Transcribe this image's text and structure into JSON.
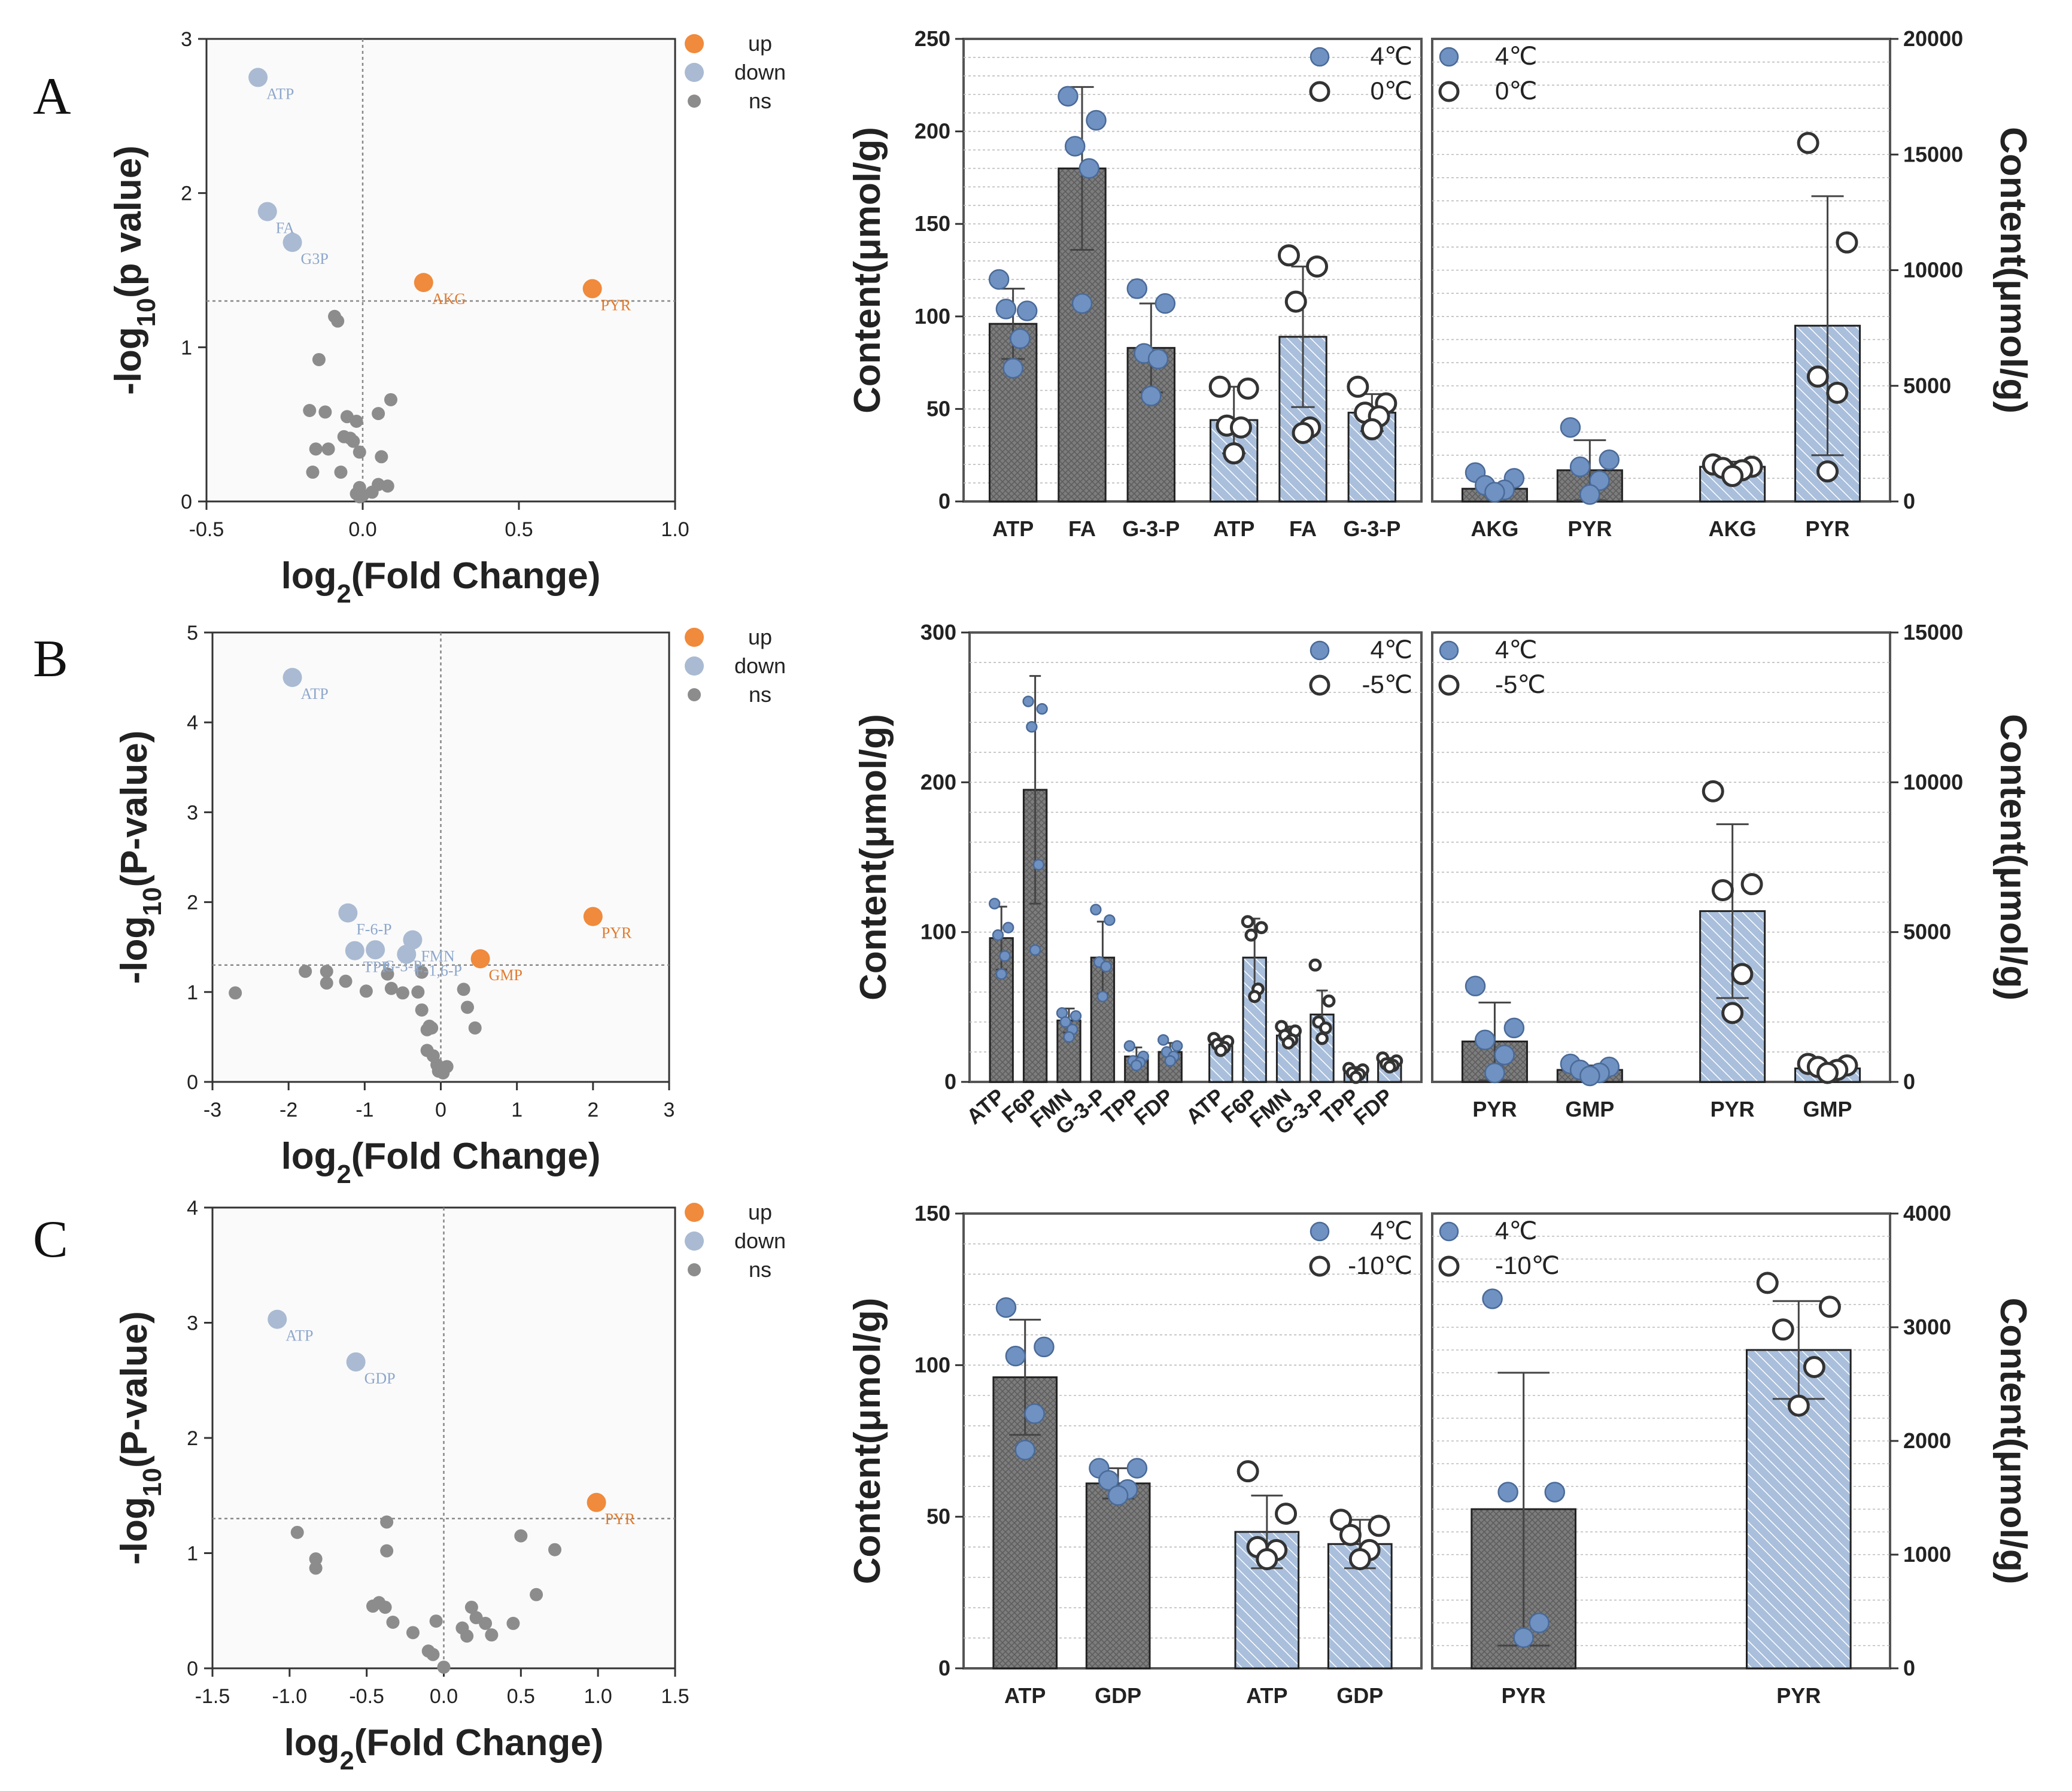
{
  "colors": {
    "up": "#f08a3c",
    "down": "#a9bad2",
    "ns": "#8c8c8c",
    "dark_bar": "#7d7d7d",
    "light_bar": "#a9bfdc",
    "dot_fill": "#6f92c2",
    "label_up": "#e07b2e",
    "label_down": "#8da7cc",
    "gmp_label": "#e07b2e"
  },
  "panel_letters": [
    "A",
    "B",
    "C"
  ],
  "volcano_legend": [
    "up",
    "down",
    "ns"
  ],
  "chart_data": [
    {
      "type": "scatter",
      "panel": "A",
      "xlabel": "log2(Fold Change)",
      "ylabel": "-log10(p value)",
      "xticks": [
        "-0.5",
        "0.0",
        "0.5",
        "1.0"
      ],
      "yticks": [
        "0",
        "1",
        "2",
        "3"
      ],
      "xlim": [
        -0.5,
        1.0
      ],
      "ylim": [
        0,
        3
      ],
      "threshold_y": 1.3,
      "labeled": [
        {
          "label": "ATP",
          "x": -0.335,
          "y": 2.75,
          "class": "down"
        },
        {
          "label": "FA",
          "x": -0.305,
          "y": 1.88,
          "class": "down"
        },
        {
          "label": "G3P",
          "x": -0.225,
          "y": 1.68,
          "class": "down"
        },
        {
          "label": "AKG",
          "x": 0.195,
          "y": 1.42,
          "class": "up"
        },
        {
          "label": "PYR",
          "x": 0.735,
          "y": 1.38,
          "class": "up"
        }
      ],
      "ns": [
        [
          -0.09,
          1.2
        ],
        [
          -0.08,
          1.17
        ],
        [
          -0.14,
          0.92
        ],
        [
          -0.17,
          0.59
        ],
        [
          -0.12,
          0.58
        ],
        [
          -0.05,
          0.55
        ],
        [
          0.05,
          0.57
        ],
        [
          0.09,
          0.66
        ],
        [
          -0.02,
          0.52
        ],
        [
          -0.06,
          0.42
        ],
        [
          -0.04,
          0.41
        ],
        [
          -0.03,
          0.39
        ],
        [
          -0.15,
          0.34
        ],
        [
          -0.11,
          0.34
        ],
        [
          -0.01,
          0.32
        ],
        [
          0.06,
          0.29
        ],
        [
          -0.16,
          0.19
        ],
        [
          -0.07,
          0.19
        ],
        [
          0.08,
          0.1
        ],
        [
          0.05,
          0.11
        ],
        [
          -0.01,
          0.09
        ],
        [
          0.03,
          0.06
        ],
        [
          -0.02,
          0.05
        ],
        [
          0.0,
          0.04
        ],
        [
          -0.01,
          0.03
        ]
      ]
    },
    {
      "type": "bar",
      "panel": "A",
      "ylabel": "Content(μmol/g)",
      "ylim": [
        0,
        250
      ],
      "yticks": [
        "0",
        "50",
        "100",
        "150",
        "200",
        "250"
      ],
      "legend": [
        "4℃",
        "0℃"
      ],
      "bars": [
        {
          "label": "ATP",
          "value": 96,
          "sd": 19,
          "group": "4",
          "pts": [
            120,
            103,
            104,
            88,
            72
          ]
        },
        {
          "label": "FA",
          "value": 180,
          "sd": 44,
          "group": "4",
          "pts": [
            219,
            206,
            192,
            180,
            107
          ]
        },
        {
          "label": "G-3-P",
          "value": 83,
          "sd": 24,
          "group": "4",
          "pts": [
            115,
            107,
            80,
            77,
            57
          ]
        },
        {
          "label": "ATP",
          "value": 44,
          "sd": 18,
          "group": "0",
          "pts": [
            62,
            61,
            41,
            40,
            26
          ]
        },
        {
          "label": "FA",
          "value": 89,
          "sd": 38,
          "group": "0",
          "pts": [
            133,
            127,
            108,
            40,
            37
          ]
        },
        {
          "label": "G-3-P",
          "value": 48,
          "sd": 10,
          "group": "0",
          "pts": [
            62,
            53,
            48,
            46,
            39
          ]
        }
      ]
    },
    {
      "type": "bar",
      "panel": "A",
      "ylabel": "Content(μmol/g)",
      "ylim": [
        0,
        20000
      ],
      "yticks": [
        "0",
        "5000",
        "10000",
        "15000",
        "20000"
      ],
      "legend": [
        "4℃",
        "0℃"
      ],
      "bars": [
        {
          "label": "AKG",
          "value": 550,
          "sd": 180,
          "group": "4",
          "pts": [
            1250,
            1000,
            700,
            500,
            400
          ]
        },
        {
          "label": "PYR",
          "value": 1350,
          "sd": 1300,
          "group": "4",
          "pts": [
            3200,
            1800,
            1500,
            900,
            300
          ]
        },
        {
          "label": "AKG",
          "value": 1500,
          "sd": 220,
          "group": "0",
          "pts": [
            1600,
            1500,
            1450,
            1350,
            1100
          ]
        },
        {
          "label": "PYR",
          "value": 7600,
          "sd": 5600,
          "group": "0",
          "pts": [
            15500,
            11200,
            5400,
            4700,
            1300
          ]
        }
      ]
    },
    {
      "type": "scatter",
      "panel": "B",
      "xlabel": "log2(Fold Change)",
      "ylabel": "-log10(P-value)",
      "xticks": [
        "-3",
        "-2",
        "-1",
        "0",
        "1",
        "2",
        "3"
      ],
      "yticks": [
        "0",
        "1",
        "2",
        "3",
        "4",
        "5"
      ],
      "xlim": [
        -3,
        3
      ],
      "ylim": [
        0,
        5
      ],
      "threshold_y": 1.3,
      "labeled": [
        {
          "label": "ATP",
          "x": -1.95,
          "y": 4.5,
          "class": "down"
        },
        {
          "label": "F-6-P",
          "x": -1.22,
          "y": 1.88,
          "class": "down"
        },
        {
          "label": "TPP",
          "x": -1.13,
          "y": 1.46,
          "class": "down"
        },
        {
          "label": "G-3-P",
          "x": -0.86,
          "y": 1.47,
          "class": "down"
        },
        {
          "label": "FMN",
          "x": -0.37,
          "y": 1.58,
          "class": "down"
        },
        {
          "label": "F-1,6-P",
          "x": -0.45,
          "y": 1.42,
          "class": "down"
        },
        {
          "label": "GMP",
          "x": 0.52,
          "y": 1.37,
          "class": "up"
        },
        {
          "label": "PYR",
          "x": 2.0,
          "y": 1.84,
          "class": "up"
        }
      ],
      "ns": [
        [
          -2.7,
          0.99
        ],
        [
          -1.78,
          1.23
        ],
        [
          -1.5,
          1.23
        ],
        [
          -1.5,
          1.1
        ],
        [
          -1.25,
          1.12
        ],
        [
          -0.98,
          1.01
        ],
        [
          -0.7,
          1.2
        ],
        [
          -0.65,
          1.04
        ],
        [
          -0.25,
          1.22
        ],
        [
          -0.3,
          1.0
        ],
        [
          -0.5,
          0.99
        ],
        [
          0.3,
          1.03
        ],
        [
          0.35,
          0.83
        ],
        [
          0.45,
          0.6
        ],
        [
          -0.25,
          0.8
        ],
        [
          -0.18,
          0.58
        ],
        [
          -0.12,
          0.6
        ],
        [
          -0.18,
          0.35
        ],
        [
          -0.05,
          0.19
        ],
        [
          -0.03,
          0.12
        ],
        [
          0.08,
          0.17
        ],
        [
          0.03,
          0.1
        ],
        [
          -0.1,
          0.29
        ],
        [
          -0.15,
          0.62
        ]
      ]
    },
    {
      "type": "bar",
      "panel": "B",
      "ylabel": "Content(μmol/g)",
      "ylim": [
        0,
        300
      ],
      "yticks": [
        "0",
        "100",
        "200",
        "300"
      ],
      "legend": [
        "4℃",
        "-5℃"
      ],
      "bars": [
        {
          "label": "ATP",
          "value": 96,
          "sd": 21,
          "group": "4",
          "pts": [
            119,
            103,
            98,
            84,
            72
          ]
        },
        {
          "label": "F6P",
          "value": 195,
          "sd": 76,
          "group": "4",
          "pts": [
            254,
            249,
            237,
            145,
            88
          ]
        },
        {
          "label": "FMN",
          "value": 41,
          "sd": 8,
          "group": "4",
          "pts": [
            46,
            44,
            40,
            35,
            30
          ]
        },
        {
          "label": "G-3-P",
          "value": 83,
          "sd": 24,
          "group": "4",
          "pts": [
            115,
            108,
            80,
            77,
            57
          ]
        },
        {
          "label": "TPP",
          "value": 17,
          "sd": 6,
          "group": "4",
          "pts": [
            24,
            17,
            14,
            13,
            11
          ]
        },
        {
          "label": "FDP",
          "value": 20,
          "sd": 6,
          "group": "4",
          "pts": [
            28,
            24,
            20,
            17,
            14
          ]
        },
        {
          "label": "ATP",
          "value": 25,
          "sd": 4,
          "group": "-5",
          "pts": [
            29,
            27,
            25,
            23,
            21
          ]
        },
        {
          "label": "F6P",
          "value": 83,
          "sd": 26,
          "group": "-5",
          "pts": [
            107,
            103,
            98,
            62,
            57
          ]
        },
        {
          "label": "FMN",
          "value": 31,
          "sd": 6,
          "group": "-5",
          "pts": [
            37,
            34,
            31,
            28,
            26
          ]
        },
        {
          "label": "G-3-P",
          "value": 45,
          "sd": 16,
          "group": "-5",
          "pts": [
            78,
            54,
            40,
            36,
            29
          ]
        },
        {
          "label": "TPP",
          "value": 7,
          "sd": 3,
          "group": "-5",
          "pts": [
            9,
            8,
            6,
            5,
            3
          ]
        },
        {
          "label": "FDP",
          "value": 13,
          "sd": 3,
          "group": "-5",
          "pts": [
            16,
            14,
            12,
            11,
            10
          ]
        }
      ]
    },
    {
      "type": "bar",
      "panel": "B",
      "ylabel": "Content(μmol/g)",
      "ylim": [
        0,
        15000
      ],
      "yticks": [
        "0",
        "5000",
        "10000",
        "15000"
      ],
      "legend": [
        "4℃",
        "-5℃"
      ],
      "bars": [
        {
          "label": "PYR",
          "value": 1350,
          "sd": 1300,
          "group": "4",
          "pts": [
            3200,
            1800,
            1400,
            900,
            300
          ]
        },
        {
          "label": "GMP",
          "value": 400,
          "sd": 150,
          "group": "4",
          "pts": [
            600,
            500,
            400,
            300,
            200
          ]
        },
        {
          "label": "PYR",
          "value": 5700,
          "sd": 2900,
          "group": "-5",
          "pts": [
            9700,
            6600,
            6400,
            3600,
            2300
          ]
        },
        {
          "label": "GMP",
          "value": 450,
          "sd": 120,
          "group": "-5",
          "pts": [
            600,
            550,
            500,
            400,
            300
          ]
        }
      ]
    },
    {
      "type": "scatter",
      "panel": "C",
      "xlabel": "log2(Fold Change)",
      "ylabel": "-log10(P-value)",
      "xticks": [
        "-1.5",
        "-1.0",
        "-0.5",
        "0.0",
        "0.5",
        "1.0",
        "1.5"
      ],
      "yticks": [
        "0",
        "1",
        "2",
        "3",
        "4"
      ],
      "xlim": [
        -1.5,
        1.5
      ],
      "ylim": [
        0,
        4
      ],
      "threshold_y": 1.3,
      "labeled": [
        {
          "label": "ATP",
          "x": -1.08,
          "y": 3.03,
          "class": "down"
        },
        {
          "label": "GDP",
          "x": -0.57,
          "y": 2.66,
          "class": "down"
        },
        {
          "label": "PYR",
          "x": 0.99,
          "y": 1.44,
          "class": "up"
        }
      ],
      "ns": [
        [
          -0.95,
          1.18
        ],
        [
          -0.83,
          0.95
        ],
        [
          -0.83,
          0.87
        ],
        [
          -0.37,
          1.27
        ],
        [
          -0.37,
          1.02
        ],
        [
          -0.42,
          0.57
        ],
        [
          -0.38,
          0.53
        ],
        [
          -0.46,
          0.54
        ],
        [
          -0.33,
          0.4
        ],
        [
          -0.2,
          0.31
        ],
        [
          -0.05,
          0.41
        ],
        [
          -0.1,
          0.15
        ],
        [
          -0.07,
          0.12
        ],
        [
          0.0,
          0.01
        ],
        [
          0.15,
          0.28
        ],
        [
          0.18,
          0.53
        ],
        [
          0.21,
          0.44
        ],
        [
          0.12,
          0.35
        ],
        [
          0.27,
          0.39
        ],
        [
          0.31,
          0.29
        ],
        [
          0.5,
          1.15
        ],
        [
          0.72,
          1.03
        ],
        [
          0.6,
          0.64
        ],
        [
          0.45,
          0.39
        ]
      ]
    },
    {
      "type": "bar",
      "panel": "C",
      "ylabel": "Content(μmol/g)",
      "ylim": [
        0,
        150
      ],
      "yticks": [
        "0",
        "50",
        "100",
        "150"
      ],
      "legend": [
        "4℃",
        "-10℃"
      ],
      "bars": [
        {
          "label": "ATP",
          "value": 96,
          "sd": 19,
          "group": "4",
          "pts": [
            119,
            106,
            103,
            84,
            72
          ]
        },
        {
          "label": "GDP",
          "value": 61,
          "sd": 5,
          "group": "4",
          "pts": [
            66,
            66,
            62,
            59,
            57
          ]
        },
        {
          "label": "ATP",
          "value": 45,
          "sd": 12,
          "group": "-10",
          "pts": [
            65,
            51,
            40,
            39,
            36
          ]
        },
        {
          "label": "GDP",
          "value": 41,
          "sd": 8,
          "group": "-10",
          "pts": [
            49,
            47,
            44,
            39,
            36
          ]
        }
      ]
    },
    {
      "type": "bar",
      "panel": "C",
      "ylabel": "Content(μmol/g)",
      "ylim": [
        0,
        4000
      ],
      "yticks": [
        "0",
        "1000",
        "2000",
        "3000",
        "4000"
      ],
      "legend": [
        "4℃",
        "-10℃"
      ],
      "bars": [
        {
          "label": "PYR",
          "value": 1400,
          "sd": 1200,
          "group": "4",
          "pts": [
            3250,
            1550,
            1550,
            400,
            270
          ]
        },
        {
          "label": "PYR",
          "value": 2800,
          "sd": 430,
          "group": "-10",
          "pts": [
            3390,
            3180,
            2980,
            2650,
            2310
          ]
        }
      ]
    }
  ]
}
